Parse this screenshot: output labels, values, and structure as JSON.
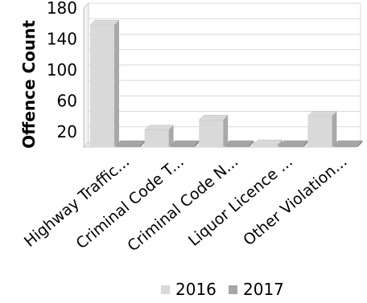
{
  "chart_data": {
    "type": "bar",
    "ylabel": "Offence Count",
    "xlabel": "",
    "ylim": [
      0,
      180
    ],
    "yticks": [
      20,
      60,
      100,
      140,
      180
    ],
    "grid": true,
    "legend_position": "bottom",
    "categories": [
      "Highway Traffic...",
      "Criminal Code T...",
      "Criminal Code N...",
      "Liquor Licence ...",
      "Other Violation..."
    ],
    "series": [
      {
        "name": "2016",
        "color": "#d9d9d9",
        "values": [
          158,
          22,
          35,
          3,
          40
        ]
      },
      {
        "name": "2017",
        "color": "#a6a6a6",
        "values": [
          2,
          2,
          2,
          2,
          2
        ]
      }
    ]
  }
}
